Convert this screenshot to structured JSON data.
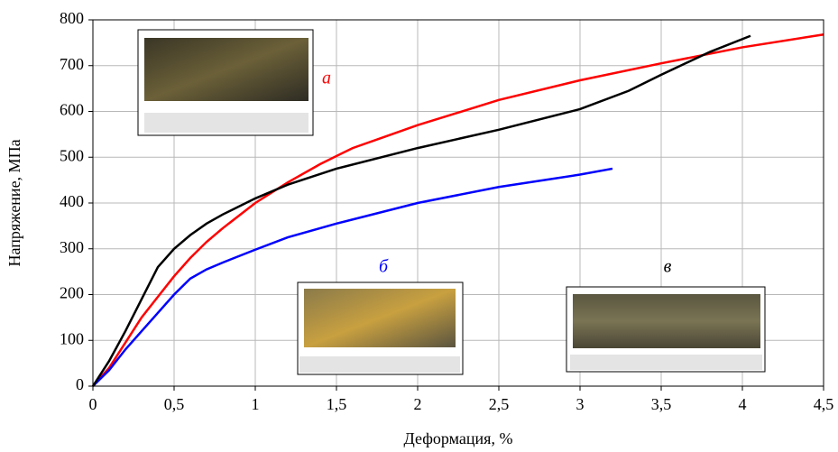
{
  "chart_data": {
    "type": "line",
    "x_label": "Деформация, %",
    "y_label": "Напряжение, МПа",
    "xlim": [
      0,
      4.5
    ],
    "ylim": [
      0,
      800
    ],
    "xticks": [
      0,
      {
        "value": 0.5,
        "label": "0,5"
      },
      1,
      {
        "value": 1.5,
        "label": "1,5"
      },
      2,
      {
        "value": 2.5,
        "label": "2,5"
      },
      3,
      {
        "value": 3.5,
        "label": "3,5"
      },
      4,
      {
        "value": 4.5,
        "label": "4,5"
      }
    ],
    "yticks": [
      0,
      100,
      200,
      300,
      400,
      500,
      600,
      700,
      800
    ],
    "grid": true,
    "series": [
      {
        "name": "а",
        "color": "#ff0000",
        "x": [
          0,
          0.1,
          0.2,
          0.3,
          0.4,
          0.5,
          0.6,
          0.7,
          0.8,
          1.0,
          1.2,
          1.4,
          1.6,
          1.8,
          2.0,
          2.5,
          3.0,
          3.5,
          4.0,
          4.5
        ],
        "values": [
          0,
          40,
          95,
          150,
          195,
          240,
          280,
          315,
          345,
          400,
          445,
          485,
          520,
          545,
          570,
          625,
          668,
          705,
          740,
          768
        ]
      },
      {
        "name": "б",
        "color": "#0000ff",
        "x": [
          0,
          0.1,
          0.2,
          0.3,
          0.4,
          0.5,
          0.6,
          0.7,
          0.8,
          1.0,
          1.2,
          1.5,
          2.0,
          2.5,
          3.0,
          3.2
        ],
        "values": [
          0,
          35,
          80,
          120,
          160,
          200,
          235,
          255,
          270,
          298,
          325,
          355,
          400,
          435,
          462,
          475
        ]
      },
      {
        "name": "в",
        "color": "#000000",
        "x": [
          0,
          0.1,
          0.2,
          0.3,
          0.4,
          0.5,
          0.6,
          0.7,
          0.8,
          1.0,
          1.2,
          1.5,
          2.0,
          2.5,
          3.0,
          3.3,
          3.5,
          3.8,
          4.05
        ],
        "values": [
          0,
          55,
          120,
          190,
          260,
          300,
          330,
          355,
          375,
          410,
          440,
          475,
          520,
          560,
          605,
          645,
          680,
          730,
          765
        ]
      }
    ]
  }
}
